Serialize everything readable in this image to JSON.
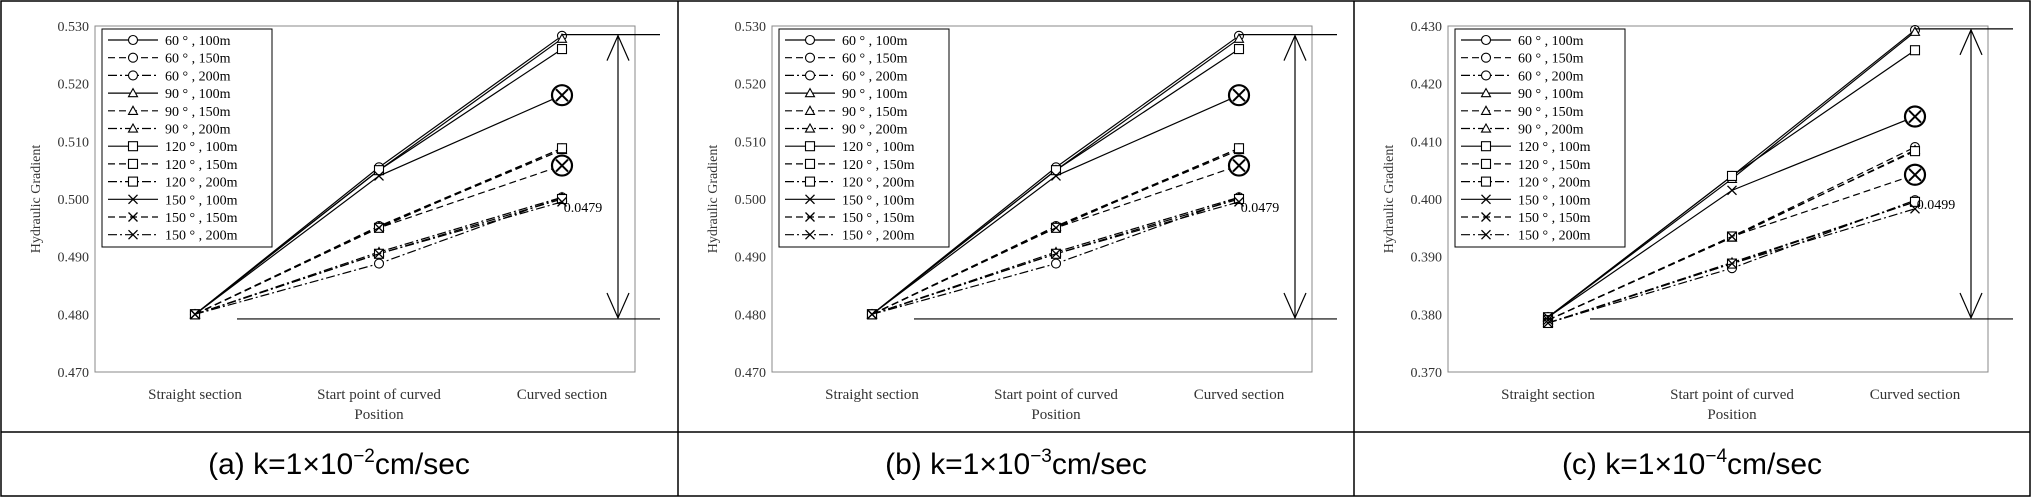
{
  "captions": [
    {
      "pre": "(a)  k=1×10",
      "exp": "−2",
      "post": "cm/sec"
    },
    {
      "pre": "(b)  k=1×10",
      "exp": "−3",
      "post": "cm/sec"
    },
    {
      "pre": "(c)  k=1×10",
      "exp": "−4",
      "post": "cm/sec"
    }
  ],
  "legend_style": {
    "markers": [
      "circle",
      "circle",
      "circle",
      "triangle",
      "triangle",
      "triangle",
      "square",
      "square",
      "square",
      "x",
      "x",
      "x"
    ],
    "dashes": [
      "solid",
      "dash",
      "dashdot",
      "solid",
      "dash",
      "dashdot",
      "solid",
      "dash",
      "dashdot",
      "solid",
      "dash",
      "dashdot"
    ]
  },
  "chart_data": [
    {
      "type": "line",
      "categories": [
        "Straight section",
        "Start point of curved",
        "Curved section"
      ],
      "xlabel": "Position",
      "ylabel": "Hydraulic Gradient",
      "ylim": [
        0.47,
        0.53
      ],
      "yticks": [
        "0.470",
        "0.480",
        "0.490",
        "0.500",
        "0.510",
        "0.520",
        "0.530"
      ],
      "grid": false,
      "legend_position": "top-left",
      "series": [
        {
          "name": "60 ° , 100m",
          "values": [
            0.48,
            0.5055,
            0.5283
          ]
        },
        {
          "name": "60 ° , 150m",
          "values": [
            0.48,
            0.4953,
            0.5088
          ]
        },
        {
          "name": "60 ° , 200m",
          "values": [
            0.48,
            0.4888,
            0.5003
          ]
        },
        {
          "name": "90 ° , 100m",
          "values": [
            0.48,
            0.505,
            0.5278
          ]
        },
        {
          "name": "90 ° , 150m",
          "values": [
            0.48,
            0.4952,
            0.5085
          ]
        },
        {
          "name": "90 ° , 200m",
          "values": [
            0.48,
            0.4908,
            0.5003
          ]
        },
        {
          "name": "120 ° , 100m",
          "values": [
            0.48,
            0.505,
            0.526
          ]
        },
        {
          "name": "120 ° , 150m",
          "values": [
            0.48,
            0.495,
            0.5088
          ]
        },
        {
          "name": "120 ° , 200m",
          "values": [
            0.48,
            0.4905,
            0.5
          ]
        },
        {
          "name": "150 ° , 100m",
          "values": [
            0.48,
            0.504,
            0.518
          ]
        },
        {
          "name": "150 ° , 150m",
          "values": [
            0.48,
            0.495,
            0.5058
          ]
        },
        {
          "name": "150 ° , 200m",
          "values": [
            0.48,
            0.4905,
            0.4995
          ]
        }
      ],
      "highlights": [
        {
          "series": "150 ° , 100m",
          "category": "Curved section"
        },
        {
          "series": "150 ° , 150m",
          "category": "Curved section"
        }
      ],
      "annotation": {
        "label": "0.0479",
        "from": 0.4792,
        "to": 0.5285
      }
    },
    {
      "type": "line",
      "categories": [
        "Straight section",
        "Start point of curved",
        "Curved section"
      ],
      "xlabel": "Position",
      "ylabel": "Hydraulic Gradient",
      "ylim": [
        0.47,
        0.53
      ],
      "yticks": [
        "0.470",
        "0.480",
        "0.490",
        "0.500",
        "0.510",
        "0.520",
        "0.530"
      ],
      "grid": false,
      "legend_position": "top-left",
      "series": [
        {
          "name": "60 ° , 100m",
          "values": [
            0.48,
            0.5055,
            0.5283
          ]
        },
        {
          "name": "60 ° , 150m",
          "values": [
            0.48,
            0.4953,
            0.5088
          ]
        },
        {
          "name": "60 ° , 200m",
          "values": [
            0.48,
            0.4888,
            0.5003
          ]
        },
        {
          "name": "90 ° , 100m",
          "values": [
            0.48,
            0.505,
            0.5278
          ]
        },
        {
          "name": "90 ° , 150m",
          "values": [
            0.48,
            0.4952,
            0.5085
          ]
        },
        {
          "name": "90 ° , 200m",
          "values": [
            0.48,
            0.4908,
            0.5003
          ]
        },
        {
          "name": "120 ° , 100m",
          "values": [
            0.48,
            0.505,
            0.526
          ]
        },
        {
          "name": "120 ° , 150m",
          "values": [
            0.48,
            0.495,
            0.5088
          ]
        },
        {
          "name": "120 ° , 200m",
          "values": [
            0.48,
            0.4905,
            0.5
          ]
        },
        {
          "name": "150 ° , 100m",
          "values": [
            0.48,
            0.504,
            0.518
          ]
        },
        {
          "name": "150 ° , 150m",
          "values": [
            0.48,
            0.495,
            0.5058
          ]
        },
        {
          "name": "150 ° , 200m",
          "values": [
            0.48,
            0.4905,
            0.4995
          ]
        }
      ],
      "highlights": [
        {
          "series": "150 ° , 100m",
          "category": "Curved section"
        },
        {
          "series": "150 ° , 150m",
          "category": "Curved section"
        }
      ],
      "annotation": {
        "label": "0.0479",
        "from": 0.4792,
        "to": 0.5285
      }
    },
    {
      "type": "line",
      "categories": [
        "Straight section",
        "Start point of curved",
        "Curved section"
      ],
      "xlabel": "Position",
      "ylabel": "Hydraulic Gradient",
      "ylim": [
        0.37,
        0.43
      ],
      "yticks": [
        "0.370",
        "0.380",
        "0.390",
        "0.400",
        "0.410",
        "0.420",
        "0.430"
      ],
      "grid": false,
      "legend_position": "top-left",
      "series": [
        {
          "name": "60 ° , 100m",
          "values": [
            0.3795,
            0.404,
            0.4293
          ]
        },
        {
          "name": "60 ° , 150m",
          "values": [
            0.379,
            0.3935,
            0.409
          ]
        },
        {
          "name": "60 ° , 200m",
          "values": [
            0.3785,
            0.388,
            0.3998
          ]
        },
        {
          "name": "90 ° , 100m",
          "values": [
            0.3795,
            0.4035,
            0.429
          ]
        },
        {
          "name": "90 ° , 150m",
          "values": [
            0.379,
            0.3933,
            0.4085
          ]
        },
        {
          "name": "90 ° , 200m",
          "values": [
            0.3785,
            0.389,
            0.3995
          ]
        },
        {
          "name": "120 ° , 100m",
          "values": [
            0.3795,
            0.404,
            0.4258
          ]
        },
        {
          "name": "120 ° , 150m",
          "values": [
            0.379,
            0.3935,
            0.4083
          ]
        },
        {
          "name": "120 ° , 200m",
          "values": [
            0.3785,
            0.3888,
            0.3995
          ]
        },
        {
          "name": "150 ° , 100m",
          "values": [
            0.3795,
            0.4015,
            0.4143
          ]
        },
        {
          "name": "150 ° , 150m",
          "values": [
            0.379,
            0.3935,
            0.4042
          ]
        },
        {
          "name": "150 ° , 200m",
          "values": [
            0.3785,
            0.3888,
            0.3983
          ]
        }
      ],
      "highlights": [
        {
          "series": "150 ° , 100m",
          "category": "Curved section"
        },
        {
          "series": "150 ° , 150m",
          "category": "Curved section"
        }
      ],
      "annotation": {
        "label": "0.0499",
        "from": 0.3792,
        "to": 0.4295
      }
    }
  ]
}
